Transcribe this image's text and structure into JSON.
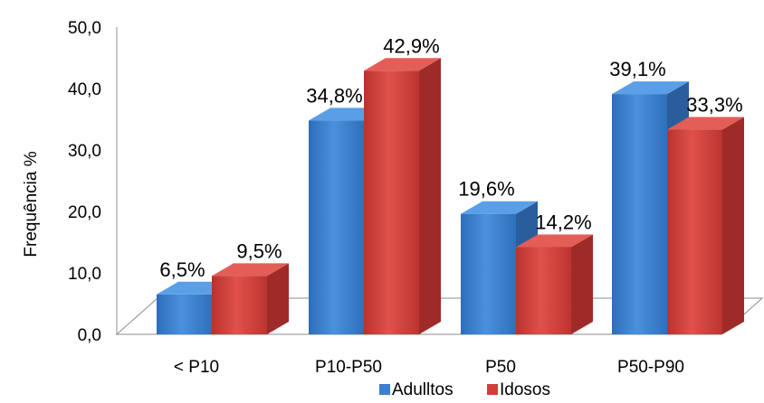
{
  "chart_data": {
    "type": "bar",
    "title": "",
    "xlabel": "",
    "ylabel": "Frequência %",
    "ylim": [
      0,
      50
    ],
    "yticks": [
      0,
      10,
      20,
      30,
      40,
      50
    ],
    "ytick_labels": [
      "0,0",
      "10,0",
      "20,0",
      "30,0",
      "40,0",
      "50,0"
    ],
    "categories": [
      "< P10",
      "P10-P50",
      "P50",
      "P50-P90"
    ],
    "series": [
      {
        "name": "Adulltos",
        "values": [
          6.5,
          34.8,
          19.6,
          39.1
        ],
        "labels": [
          "6,5%",
          "34,8%",
          "19,6%",
          "39,1%"
        ],
        "color": "#3b7fcf"
      },
      {
        "name": "Idosos",
        "values": [
          9.5,
          42.9,
          14.2,
          33.3
        ],
        "labels": [
          "9,5%",
          "42,9%",
          "14,2%",
          "33,3%"
        ],
        "color": "#d23f38"
      }
    ],
    "legend_position": "bottom",
    "grid": false,
    "style": "3d-clustered-column"
  }
}
